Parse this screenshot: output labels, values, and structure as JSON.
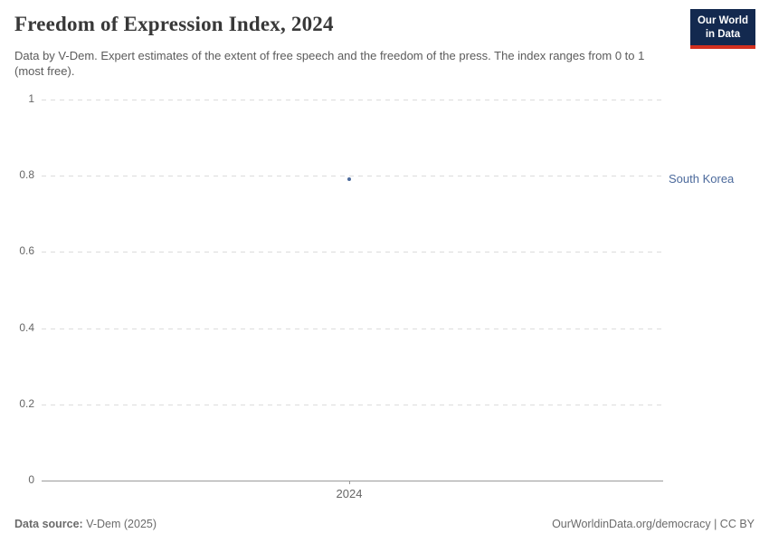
{
  "header": {
    "title": "Freedom of Expression Index, 2024",
    "subtitle": "Data by V-Dem. Expert estimates of the extent of free speech and the freedom of the press. The index ranges from 0 to 1 (most free).",
    "logo": {
      "line1": "Our World",
      "line2": "in Data",
      "bg_color": "#13294f",
      "accent_color": "#d3301f"
    }
  },
  "chart_data": {
    "type": "scatter",
    "title": "Freedom of Expression Index, 2024",
    "x": [
      2024
    ],
    "x_tick_labels": [
      "2024"
    ],
    "series": [
      {
        "name": "South Korea",
        "values": [
          0.79
        ],
        "color": "#4c6a9c"
      }
    ],
    "y_ticks": [
      0,
      0.2,
      0.4,
      0.6,
      0.8,
      1
    ],
    "ylim": [
      0,
      1
    ],
    "xlabel": "",
    "ylabel": "",
    "grid": "horizontal-dashed",
    "legend_position": "entity-label-right"
  },
  "footer": {
    "source_label": "Data source:",
    "source_value": "V-Dem (2025)",
    "credit": "OurWorldinData.org/democracy | CC BY"
  }
}
